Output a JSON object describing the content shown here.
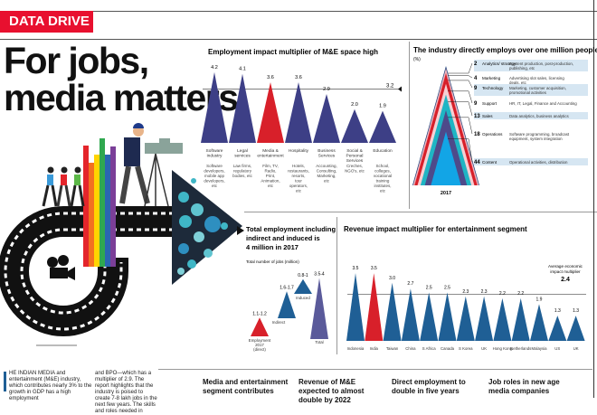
{
  "header": {
    "badge": "DATA DRIVE",
    "headline_1": "For jobs,",
    "headline_2": "media matters"
  },
  "colors": {
    "brand_red": "#e8102f",
    "bar_blue": "#3d3f86",
    "bar_red": "#d8202a",
    "revenue_blue": "#1f5f95"
  },
  "chart_data": [
    {
      "type": "bar",
      "title": "Employment impact multiplier of M&E space high",
      "categories": [
        "Software industry",
        "Legal services",
        "Media & entertainment",
        "Hospitality",
        "Business Services",
        "Social & Personal Services",
        "Education"
      ],
      "descriptions": [
        "Software developers, mobile app developers, etc",
        "Law firms, regulatory bodies, etc",
        "Film, TV, Radio, Print, Animation, etc",
        "Hotels, restaurants, resorts, tour operators, etc",
        "Accounting, Consulting, Marketing, etc",
        "Creches, NGO's, etc",
        "School, colleges, vocational training institutes, etc"
      ],
      "values": [
        4.2,
        4.1,
        3.6,
        3.6,
        2.9,
        2.0,
        1.9
      ],
      "value_labels": [
        "4.2",
        "4.1",
        "3.6",
        "3.6",
        "2.9",
        "2.0",
        "1.9"
      ],
      "highlight": "Media & entertainment",
      "average": 3.2,
      "average_label": "3.2",
      "ylim": [
        0,
        4.2
      ]
    },
    {
      "type": "area",
      "title": "The industry directly employs over one million people",
      "unit": "(%)",
      "xlabel": "2017",
      "segments": [
        {
          "value": 2,
          "label": "2",
          "role": "Analytics/ strategy",
          "desc": "Content production, post-production, publishing, etc",
          "color": "#1c3f7a"
        },
        {
          "value": 4,
          "label": "4",
          "role": "Marketing",
          "desc": "Advertising slot sales, licensing deals, etc",
          "color": "#f2b8c0"
        },
        {
          "value": 9,
          "label": "9",
          "role": "Technology",
          "desc": "Marketing, customer acquisition, promotional activities",
          "color": "#d8202a"
        },
        {
          "value": 9,
          "label": "9",
          "role": "Support",
          "desc": "HR, IT, Legal, Finance and Accounting",
          "color": "#f6d0d4"
        },
        {
          "value": 13,
          "label": "13",
          "role": "Sales",
          "desc": "Data analytics, business analytics",
          "color": "#1fb5c4"
        },
        {
          "value": 18,
          "label": "18",
          "role": "Operations",
          "desc": "Software programming, broadcast equipment, system integration",
          "color": "#4e4a8a"
        },
        {
          "value": 44,
          "label": "44",
          "role": "Content",
          "desc": "Operational activities, distribution",
          "color": "#12a5e6"
        }
      ]
    },
    {
      "type": "bar",
      "title_1": "Total employment including",
      "title_2": "indirect and induced is",
      "title_3": "4 million in 2017",
      "subtitle": "Total number of jobs (million)",
      "categories": [
        "Employment 2017 (direct)",
        "Indirect",
        "Induced",
        "Total"
      ],
      "values": [
        [
          1.1,
          1.2
        ],
        [
          1.6,
          1.7
        ],
        [
          0.8,
          1.0
        ],
        [
          3.5,
          4.0
        ]
      ],
      "value_labels": [
        "1.1-1.2",
        "1.6-1.7",
        "0.8-1",
        "3.5-4"
      ]
    },
    {
      "type": "bar",
      "title": "Revenue impact multiplier for entertainment segment",
      "categories": [
        "Indonesia",
        "India",
        "Taiwan",
        "China",
        "S Africa",
        "Canada",
        "S Korea",
        "UK",
        "Hong Kong",
        "Netherlands",
        "Malaysia",
        "US",
        "UK"
      ],
      "values": [
        3.5,
        3.5,
        3.0,
        2.7,
        2.5,
        2.5,
        2.3,
        2.3,
        2.2,
        2.2,
        1.9,
        1.3,
        1.3
      ],
      "value_labels": [
        "3.5",
        "3.5",
        "3.0",
        "2.7",
        "2.5",
        "2.5",
        "2.3",
        "2.3",
        "2.2",
        "2.2",
        "1.9",
        "1.3",
        "1.3"
      ],
      "highlight": "India",
      "average": 2.4,
      "average_label_1": "Average economic",
      "average_label_2": "impact multiplier",
      "average_value": "2.4",
      "ylim": [
        0,
        3.5
      ]
    }
  ],
  "article": {
    "col1": "HE INDIAN MEDIA and entertainment (M&E) industry, which contributes nearly 3% to the growth in GDP has a high employment",
    "col2": "and BPO—which has a multiplier of 2.9. The report highlights that the industry is poised to create 7-8 lakh jobs in the next few years. The skills and roles needed in",
    "headings": [
      "Media and entertainment segment contributes",
      "Revenue of M&E expected to almost double by 2022",
      "Direct employment to double in five years",
      "Job roles in new age media companies"
    ]
  }
}
